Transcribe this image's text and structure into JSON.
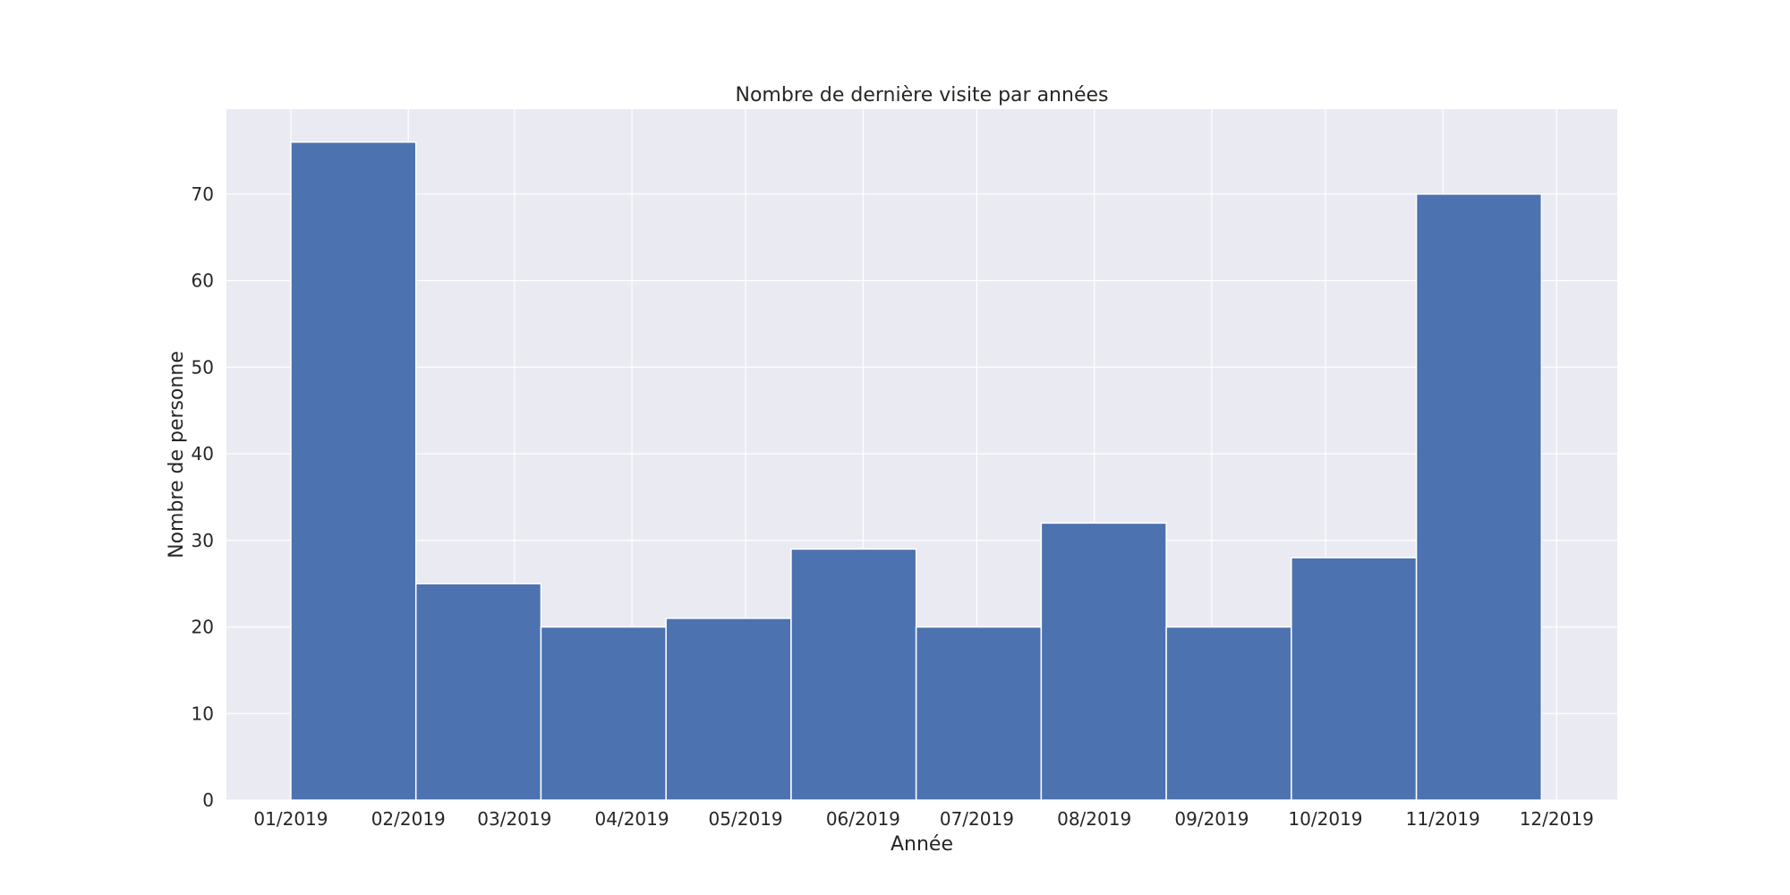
{
  "chart_data": {
    "type": "bar",
    "subtype": "histogram",
    "title": "Nombre de dernière visite par années",
    "xlabel": "Année",
    "ylabel": "Nombre de personne",
    "x_ticks": [
      "01/2019",
      "02/2019",
      "03/2019",
      "04/2019",
      "05/2019",
      "06/2019",
      "07/2019",
      "08/2019",
      "09/2019",
      "10/2019",
      "11/2019",
      "12/2019"
    ],
    "y_ticks": [
      0,
      10,
      20,
      30,
      40,
      50,
      60,
      70
    ],
    "ylim": [
      0,
      79.8
    ],
    "xlim": [
      "2018-12-15",
      "2019-12-17"
    ],
    "bins": [
      {
        "start": "2019-01-01",
        "end": "2019-02-03",
        "value": 76
      },
      {
        "start": "2019-02-03",
        "end": "2019-03-08",
        "value": 25
      },
      {
        "start": "2019-03-08",
        "end": "2019-04-10",
        "value": 20
      },
      {
        "start": "2019-04-10",
        "end": "2019-05-13",
        "value": 21
      },
      {
        "start": "2019-05-13",
        "end": "2019-06-15",
        "value": 29
      },
      {
        "start": "2019-06-15",
        "end": "2019-07-18",
        "value": 20
      },
      {
        "start": "2019-07-18",
        "end": "2019-08-20",
        "value": 32
      },
      {
        "start": "2019-08-20",
        "end": "2019-09-22",
        "value": 20
      },
      {
        "start": "2019-09-22",
        "end": "2019-10-25",
        "value": 28
      },
      {
        "start": "2019-10-25",
        "end": "2019-11-27",
        "value": 70
      }
    ],
    "grid": true,
    "colors": {
      "bar": "#4c72b0",
      "background": "#eaeaf2",
      "grid": "#ffffff"
    }
  }
}
